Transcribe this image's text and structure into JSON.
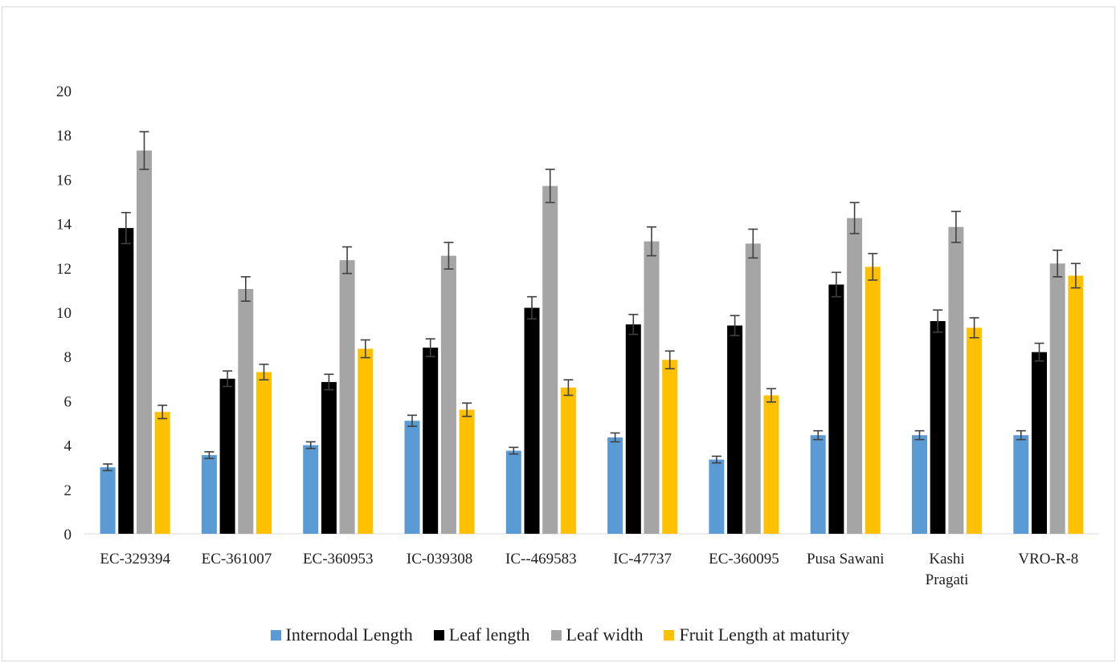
{
  "chart_data": {
    "type": "bar",
    "categories": [
      "EC-329394",
      "EC-361007",
      "EC-360953",
      "IC-039308",
      "IC--469583",
      "IC-47737",
      "EC-360095",
      "Pusa Sawani",
      "Kashi Pragati",
      "VRO-R-8"
    ],
    "category_lines": [
      [
        "EC-329394"
      ],
      [
        "EC-361007"
      ],
      [
        "EC-360953"
      ],
      [
        "IC-039308"
      ],
      [
        "IC--469583"
      ],
      [
        "IC-47737"
      ],
      [
        "EC-360095"
      ],
      [
        "Pusa Sawani"
      ],
      [
        "Kashi",
        "Pragati"
      ],
      [
        "VRO-R-8"
      ]
    ],
    "series": [
      {
        "name": "Internodal Length",
        "color": "#5b9bd5",
        "values": [
          3.0,
          3.55,
          4.0,
          5.1,
          3.75,
          4.35,
          3.35,
          4.45,
          4.45,
          4.45
        ],
        "errors": [
          0.15,
          0.15,
          0.15,
          0.25,
          0.15,
          0.2,
          0.15,
          0.2,
          0.2,
          0.2
        ]
      },
      {
        "name": "Leaf length",
        "color": "#000000",
        "values": [
          13.8,
          7.0,
          6.85,
          8.4,
          10.2,
          9.45,
          9.4,
          11.25,
          9.6,
          8.2
        ],
        "errors": [
          0.7,
          0.35,
          0.35,
          0.4,
          0.5,
          0.45,
          0.45,
          0.55,
          0.5,
          0.4
        ]
      },
      {
        "name": "Leaf width",
        "color": "#a5a5a5",
        "values": [
          17.3,
          11.05,
          12.35,
          12.55,
          15.7,
          13.2,
          13.1,
          14.25,
          13.85,
          12.2
        ],
        "errors": [
          0.85,
          0.55,
          0.6,
          0.6,
          0.75,
          0.65,
          0.65,
          0.7,
          0.7,
          0.6
        ]
      },
      {
        "name": "Fruit Length at maturity",
        "color": "#ffc000",
        "values": [
          5.5,
          7.3,
          8.35,
          5.6,
          6.6,
          7.85,
          6.25,
          12.05,
          9.3,
          11.65
        ],
        "errors": [
          0.3,
          0.35,
          0.4,
          0.3,
          0.35,
          0.4,
          0.3,
          0.6,
          0.45,
          0.55
        ]
      }
    ],
    "yticks": [
      "0",
      "2",
      "4",
      "6",
      "8",
      "10",
      "12",
      "14",
      "16",
      "18",
      "20"
    ],
    "ylim": [
      0,
      20
    ],
    "grid": false,
    "legend_position": "bottom"
  }
}
